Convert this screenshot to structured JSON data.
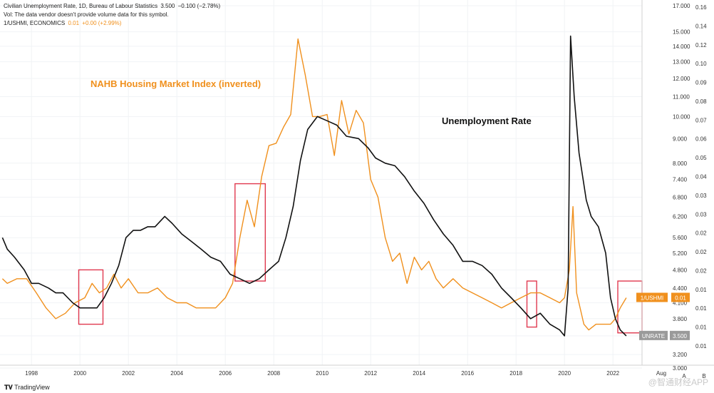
{
  "header": {
    "line1": "Civilian Unemployment Rate, 1D, Bureau of Labour Statistics",
    "line1_value": "3.500",
    "line1_change": "−0.100 (−2.78%)",
    "line2": "Vol: The data vendor doesn't provide volume data for this symbol.",
    "line3_symbol": "1/USHMI, ECONOMICS",
    "line3_value": "0.01",
    "line3_change": "+0.00 (+2.99%)"
  },
  "footer": {
    "brand": "TradingView"
  },
  "watermark": "@智通财经APP",
  "colors": {
    "unrate": "#111111",
    "nahb": "#f0901d",
    "box": "#e0394f",
    "unrate_tag": "#9a9a9a",
    "nahb_tag": "#f0901d"
  },
  "chart_data": {
    "type": "line",
    "annotations": [
      "NAHB Housing Market Index (inverted)",
      "Unemployment Rate"
    ],
    "x_ticks": [
      "1998",
      "2000",
      "2002",
      "2004",
      "2006",
      "2008",
      "2010",
      "2012",
      "2014",
      "2016",
      "2018",
      "2020",
      "2022",
      "Aug"
    ],
    "x_range": [
      1996.7,
      2023.2
    ],
    "left_scale_ticks": [
      "17.000",
      "15.000",
      "14.000",
      "13.000",
      "12.000",
      "11.000",
      "10.000",
      "9.000",
      "8.000",
      "7.400",
      "6.800",
      "6.200",
      "5.600",
      "5.200",
      "4.800",
      "4.400",
      "4.100",
      "3.800",
      "3.500",
      "3.200",
      "3.000"
    ],
    "right_scale_ticks": [
      "0.16",
      "0.14",
      "0.12",
      "0.10",
      "0.09",
      "0.08",
      "0.07",
      "0.06",
      "0.05",
      "0.04",
      "0.03",
      "0.03",
      "0.02",
      "0.02",
      "0.02",
      "0.01",
      "0.01",
      "0.01",
      "0.01"
    ],
    "right_col_labels": [
      "A",
      "B"
    ],
    "series": [
      {
        "name": "UNRATE",
        "last_value": "3.500",
        "points": [
          [
            1996.8,
            5.6
          ],
          [
            1997.0,
            5.3
          ],
          [
            1997.3,
            5.1
          ],
          [
            1997.7,
            4.8
          ],
          [
            1998.0,
            4.5
          ],
          [
            1998.3,
            4.5
          ],
          [
            1998.7,
            4.4
          ],
          [
            1999.0,
            4.3
          ],
          [
            1999.3,
            4.3
          ],
          [
            1999.7,
            4.1
          ],
          [
            2000.0,
            4.0
          ],
          [
            2000.3,
            4.0
          ],
          [
            2000.7,
            4.0
          ],
          [
            2001.0,
            4.2
          ],
          [
            2001.3,
            4.5
          ],
          [
            2001.6,
            4.9
          ],
          [
            2001.9,
            5.6
          ],
          [
            2002.2,
            5.8
          ],
          [
            2002.5,
            5.8
          ],
          [
            2002.8,
            5.9
          ],
          [
            2003.1,
            5.9
          ],
          [
            2003.5,
            6.2
          ],
          [
            2003.8,
            6.0
          ],
          [
            2004.2,
            5.7
          ],
          [
            2004.6,
            5.5
          ],
          [
            2005.0,
            5.3
          ],
          [
            2005.4,
            5.1
          ],
          [
            2005.8,
            5.0
          ],
          [
            2006.2,
            4.7
          ],
          [
            2006.6,
            4.6
          ],
          [
            2007.0,
            4.5
          ],
          [
            2007.4,
            4.6
          ],
          [
            2007.8,
            4.8
          ],
          [
            2008.2,
            5.0
          ],
          [
            2008.5,
            5.6
          ],
          [
            2008.8,
            6.5
          ],
          [
            2009.1,
            8.1
          ],
          [
            2009.4,
            9.4
          ],
          [
            2009.8,
            10.0
          ],
          [
            2010.2,
            9.8
          ],
          [
            2010.6,
            9.6
          ],
          [
            2011.0,
            9.1
          ],
          [
            2011.5,
            9.0
          ],
          [
            2011.9,
            8.6
          ],
          [
            2012.2,
            8.2
          ],
          [
            2012.6,
            8.0
          ],
          [
            2013.0,
            7.9
          ],
          [
            2013.4,
            7.5
          ],
          [
            2013.8,
            7.0
          ],
          [
            2014.2,
            6.6
          ],
          [
            2014.6,
            6.1
          ],
          [
            2015.0,
            5.7
          ],
          [
            2015.4,
            5.4
          ],
          [
            2015.8,
            5.0
          ],
          [
            2016.2,
            5.0
          ],
          [
            2016.6,
            4.9
          ],
          [
            2017.0,
            4.7
          ],
          [
            2017.4,
            4.4
          ],
          [
            2017.8,
            4.2
          ],
          [
            2018.2,
            4.0
          ],
          [
            2018.6,
            3.8
          ],
          [
            2019.0,
            3.9
          ],
          [
            2019.4,
            3.7
          ],
          [
            2019.8,
            3.6
          ],
          [
            2020.0,
            3.5
          ],
          [
            2020.15,
            4.4
          ],
          [
            2020.25,
            14.7
          ],
          [
            2020.4,
            11.0
          ],
          [
            2020.6,
            8.4
          ],
          [
            2020.9,
            6.7
          ],
          [
            2021.1,
            6.2
          ],
          [
            2021.4,
            5.9
          ],
          [
            2021.7,
            5.2
          ],
          [
            2021.9,
            4.2
          ],
          [
            2022.1,
            3.8
          ],
          [
            2022.3,
            3.6
          ],
          [
            2022.55,
            3.5
          ]
        ]
      },
      {
        "name": "1/USHMI",
        "last_value": "0.01",
        "points": [
          [
            1996.8,
            4.6
          ],
          [
            1997.0,
            4.5
          ],
          [
            1997.4,
            4.6
          ],
          [
            1997.8,
            4.6
          ],
          [
            1998.2,
            4.3
          ],
          [
            1998.6,
            4.0
          ],
          [
            1999.0,
            3.8
          ],
          [
            1999.4,
            3.9
          ],
          [
            1999.8,
            4.1
          ],
          [
            2000.2,
            4.2
          ],
          [
            2000.5,
            4.5
          ],
          [
            2000.8,
            4.3
          ],
          [
            2001.1,
            4.4
          ],
          [
            2001.4,
            4.7
          ],
          [
            2001.7,
            4.4
          ],
          [
            2002.0,
            4.6
          ],
          [
            2002.4,
            4.3
          ],
          [
            2002.8,
            4.3
          ],
          [
            2003.2,
            4.4
          ],
          [
            2003.6,
            4.2
          ],
          [
            2004.0,
            4.1
          ],
          [
            2004.4,
            4.1
          ],
          [
            2004.8,
            4.0
          ],
          [
            2005.2,
            4.0
          ],
          [
            2005.6,
            4.0
          ],
          [
            2006.0,
            4.2
          ],
          [
            2006.3,
            4.5
          ],
          [
            2006.6,
            5.6
          ],
          [
            2006.9,
            6.7
          ],
          [
            2007.2,
            5.9
          ],
          [
            2007.5,
            7.5
          ],
          [
            2007.8,
            8.7
          ],
          [
            2008.1,
            8.8
          ],
          [
            2008.4,
            9.5
          ],
          [
            2008.7,
            10.1
          ],
          [
            2009.0,
            14.5
          ],
          [
            2009.3,
            12.2
          ],
          [
            2009.6,
            10.0
          ],
          [
            2009.9,
            10.0
          ],
          [
            2010.2,
            10.1
          ],
          [
            2010.5,
            8.3
          ],
          [
            2010.8,
            10.8
          ],
          [
            2011.1,
            9.2
          ],
          [
            2011.4,
            10.3
          ],
          [
            2011.7,
            9.7
          ],
          [
            2012.0,
            7.4
          ],
          [
            2012.3,
            6.8
          ],
          [
            2012.6,
            5.6
          ],
          [
            2012.9,
            5.0
          ],
          [
            2013.2,
            5.2
          ],
          [
            2013.5,
            4.5
          ],
          [
            2013.8,
            5.1
          ],
          [
            2014.1,
            4.8
          ],
          [
            2014.4,
            5.0
          ],
          [
            2014.7,
            4.6
          ],
          [
            2015.0,
            4.4
          ],
          [
            2015.4,
            4.6
          ],
          [
            2015.8,
            4.4
          ],
          [
            2016.2,
            4.3
          ],
          [
            2016.6,
            4.2
          ],
          [
            2017.0,
            4.1
          ],
          [
            2017.4,
            4.0
          ],
          [
            2017.8,
            4.1
          ],
          [
            2018.2,
            4.2
          ],
          [
            2018.6,
            4.3
          ],
          [
            2019.0,
            4.3
          ],
          [
            2019.4,
            4.2
          ],
          [
            2019.8,
            4.1
          ],
          [
            2020.0,
            4.2
          ],
          [
            2020.2,
            4.8
          ],
          [
            2020.35,
            6.5
          ],
          [
            2020.5,
            4.3
          ],
          [
            2020.8,
            3.7
          ],
          [
            2021.0,
            3.6
          ],
          [
            2021.3,
            3.7
          ],
          [
            2021.6,
            3.7
          ],
          [
            2021.9,
            3.7
          ],
          [
            2022.1,
            3.8
          ],
          [
            2022.3,
            4.0
          ],
          [
            2022.55,
            4.2
          ]
        ]
      }
    ],
    "highlight_boxes": [
      {
        "x0": 1999.95,
        "x1": 2000.95,
        "y0": 3.7,
        "y1": 4.8
      },
      {
        "x0": 2006.4,
        "x1": 2007.65,
        "y0": 4.55,
        "y1": 7.25
      },
      {
        "x0": 2018.45,
        "x1": 2018.85,
        "y0": 3.65,
        "y1": 4.55
      },
      {
        "x0": 2022.2,
        "x1": 2023.2,
        "y0": 3.55,
        "y1": 4.55
      }
    ]
  }
}
